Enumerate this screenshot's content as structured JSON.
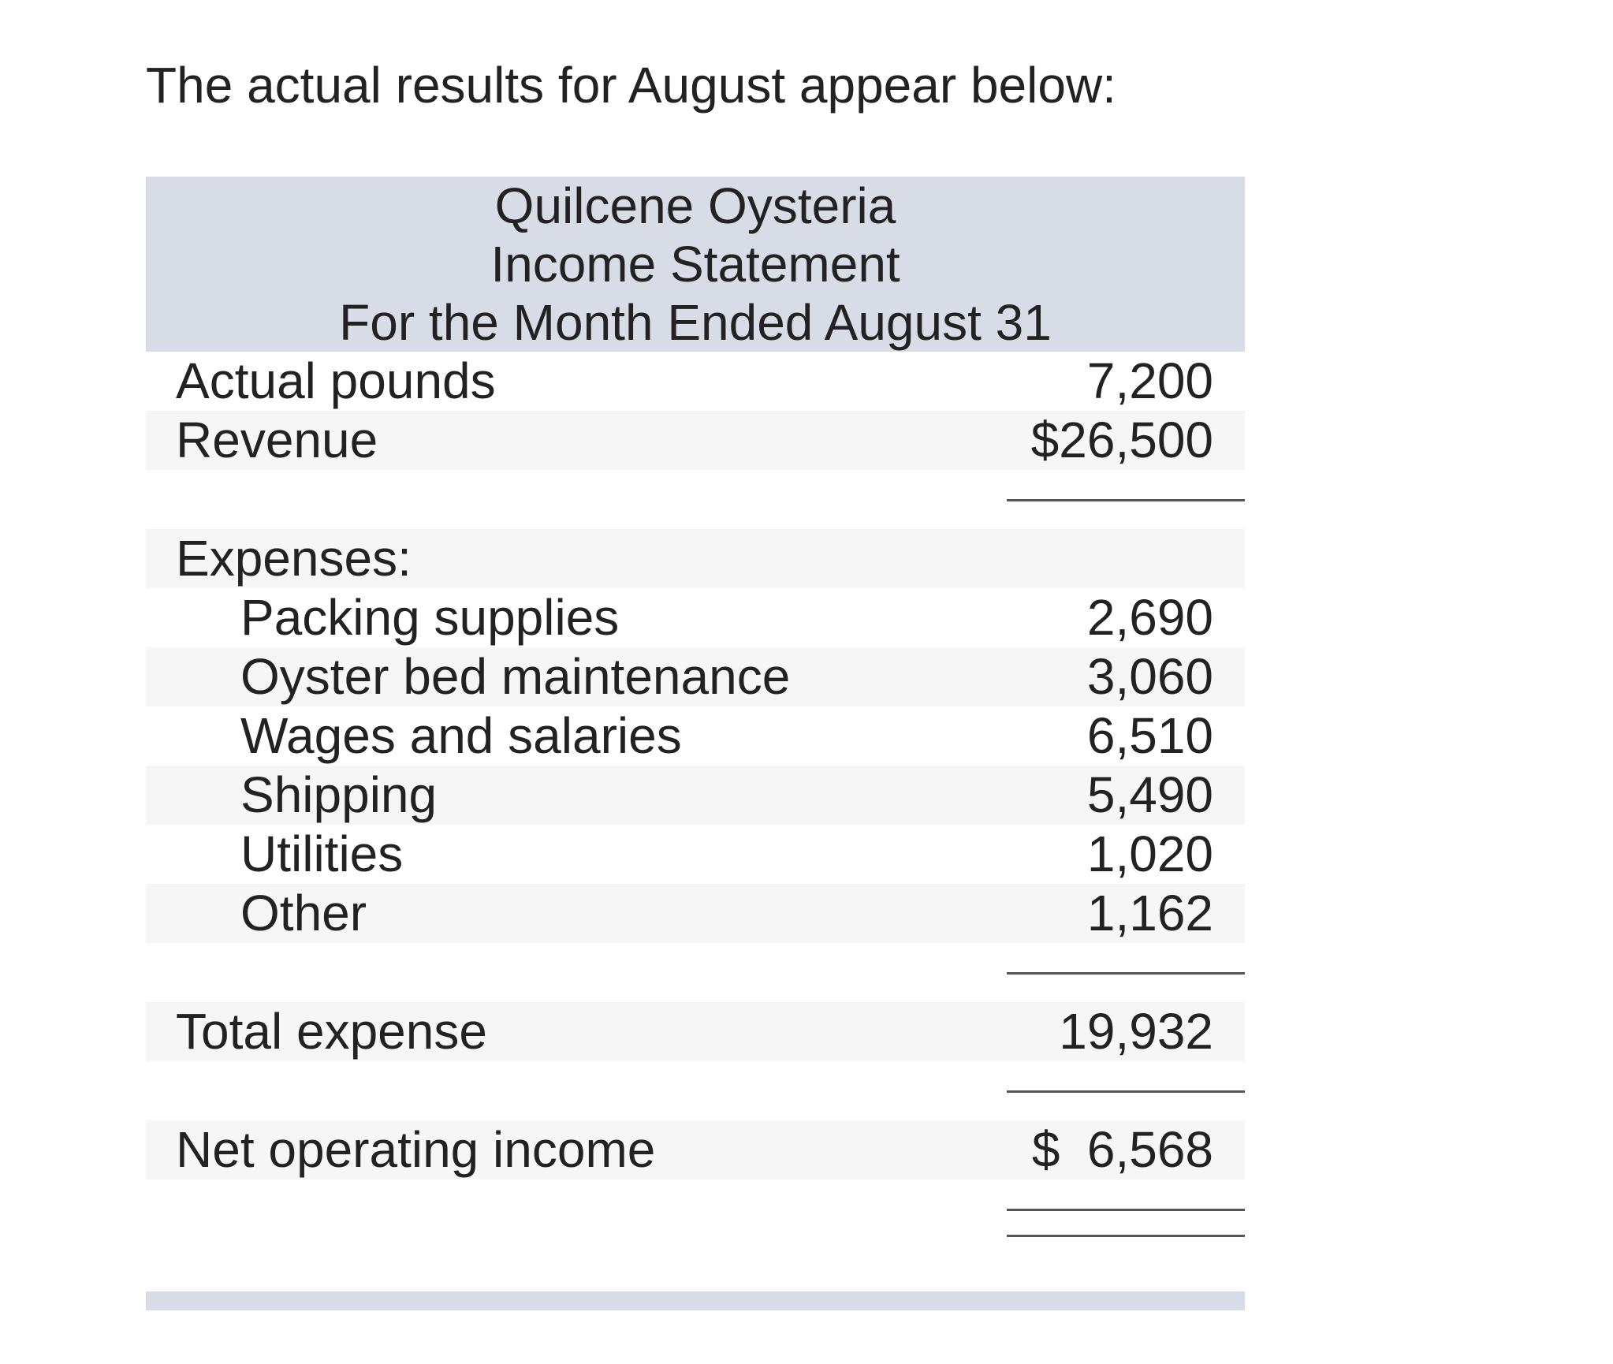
{
  "intro_text": "The actual results for August appear below:",
  "statement": {
    "company": "Quilcene Oysteria",
    "title": "Income Statement",
    "period": "For the Month Ended August 31",
    "actual_pounds": {
      "label": "Actual pounds",
      "value": "7,200"
    },
    "revenue": {
      "label": "Revenue",
      "value": "$26,500"
    },
    "expenses_heading": "Expenses:",
    "expenses": [
      {
        "label": "Packing supplies",
        "value": "2,690"
      },
      {
        "label": "Oyster bed maintenance",
        "value": "3,060"
      },
      {
        "label": "Wages and salaries",
        "value": "6,510"
      },
      {
        "label": "Shipping",
        "value": "5,490"
      },
      {
        "label": "Utilities",
        "value": "1,020"
      },
      {
        "label": "Other",
        "value": "1,162"
      }
    ],
    "total_expense": {
      "label": "Total expense",
      "value": "19,932"
    },
    "net_operating_income": {
      "label": "Net operating income",
      "currency": "$",
      "value": "6,568"
    }
  }
}
